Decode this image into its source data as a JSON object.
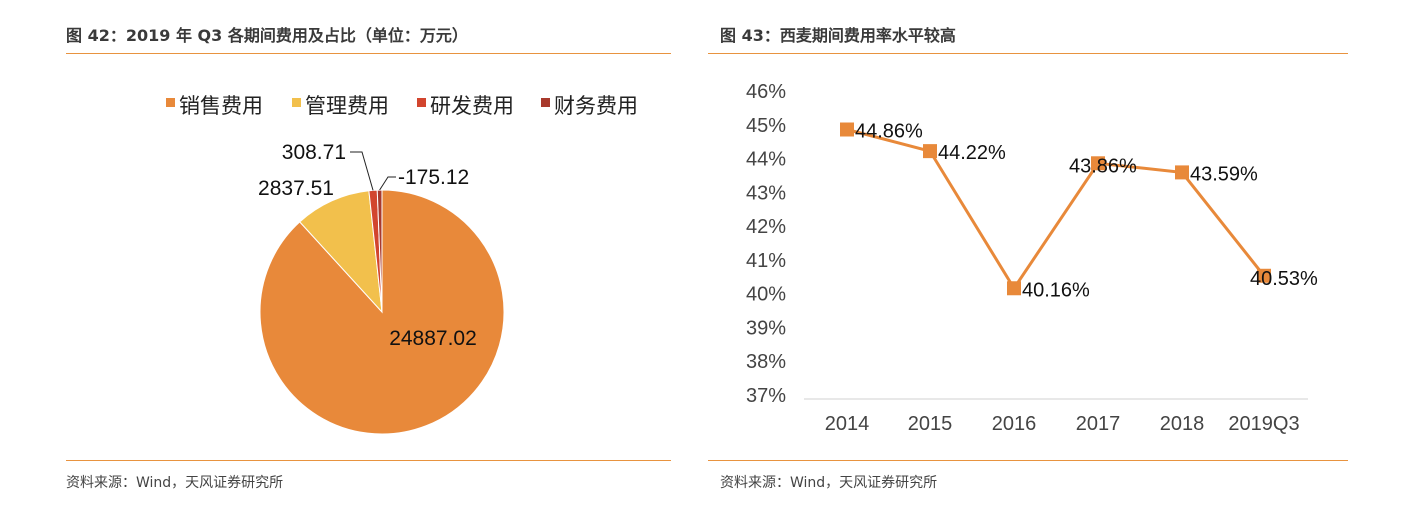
{
  "left": {
    "title": "图 42：2019 年 Q3 各期间费用及占比（单位：万元）",
    "source": "资料来源：Wind，天风证券研究所"
  },
  "right": {
    "title": "图 43：西麦期间费用率水平较高",
    "source": "资料来源：Wind，天风证券研究所"
  },
  "chart_data": [
    {
      "type": "pie",
      "categories": [
        "销售费用",
        "管理费用",
        "研发费用",
        "财务费用"
      ],
      "values": [
        24887.02,
        2837.51,
        308.71,
        -175.12
      ],
      "value_labels": [
        "24887.02",
        "2837.51",
        "308.71",
        "-175.12"
      ],
      "colors": [
        "#E8893A",
        "#F2C04C",
        "#D2452E",
        "#A8392C"
      ],
      "legend_position": "top"
    },
    {
      "type": "line",
      "categories": [
        "2014",
        "2015",
        "2016",
        "2017",
        "2018",
        "2019Q3"
      ],
      "values": [
        44.86,
        44.22,
        40.16,
        43.86,
        43.59,
        40.53
      ],
      "value_labels": [
        "44.86%",
        "44.22%",
        "40.16%",
        "43.86%",
        "43.59%",
        "40.53%"
      ],
      "ylim": [
        37,
        46
      ],
      "yticks": [
        "46%",
        "45%",
        "44%",
        "43%",
        "42%",
        "41%",
        "40%",
        "39%",
        "38%",
        "37%"
      ],
      "color": "#E8893A",
      "grid": false
    }
  ]
}
